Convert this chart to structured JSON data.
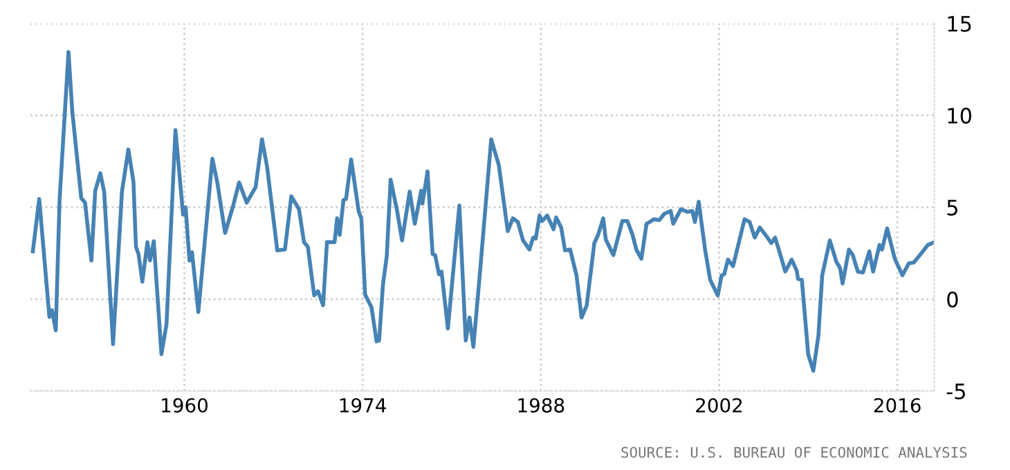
{
  "chart_data": {
    "type": "line",
    "x": [
      1948.1,
      1948.6,
      1949.4,
      1949.6,
      1949.9,
      1950.2,
      1950.9,
      1951.2,
      1951.9,
      1952.2,
      1952.7,
      1953.0,
      1953.4,
      1953.7,
      1954.4,
      1955.1,
      1955.6,
      1956.0,
      1956.2,
      1956.4,
      1956.7,
      1957.1,
      1957.3,
      1957.6,
      1958.2,
      1958.6,
      1959.3,
      1959.9,
      1960.1,
      1960.4,
      1960.6,
      1961.1,
      1961.4,
      1962.2,
      1962.6,
      1963.2,
      1963.8,
      1964.3,
      1964.9,
      1965.6,
      1966.1,
      1966.5,
      1967.3,
      1967.9,
      1968.4,
      1969.0,
      1969.4,
      1969.7,
      1970.2,
      1970.5,
      1970.9,
      1971.2,
      1971.8,
      1972.0,
      1972.2,
      1972.5,
      1972.7,
      1973.1,
      1973.7,
      1973.9,
      1974.2,
      1974.7,
      1975.1,
      1975.3,
      1975.6,
      1975.9,
      1976.2,
      1976.7,
      1977.1,
      1977.7,
      1978.1,
      1978.6,
      1978.7,
      1979.1,
      1979.5,
      1979.7,
      1980.0,
      1980.2,
      1980.7,
      1981.6,
      1982.1,
      1982.4,
      1982.7,
      1983.2,
      1984.1,
      1984.7,
      1985.4,
      1985.8,
      1986.2,
      1986.6,
      1987.1,
      1987.4,
      1987.6,
      1987.9,
      1988.1,
      1988.5,
      1989.0,
      1989.2,
      1989.6,
      1989.9,
      1990.3,
      1990.8,
      1991.2,
      1991.6,
      1992.2,
      1992.5,
      1992.9,
      1993.1,
      1993.7,
      1994.4,
      1994.8,
      1995.2,
      1995.5,
      1995.9,
      1996.3,
      1996.9,
      1997.3,
      1997.7,
      1998.2,
      1998.4,
      1999.0,
      1999.5,
      1999.9,
      2000.1,
      2000.4,
      2000.9,
      2001.3,
      2001.9,
      2002.2,
      2002.4,
      2002.7,
      2003.1,
      2004.0,
      2004.4,
      2004.8,
      2005.2,
      2005.7,
      2006.1,
      2006.4,
      2006.8,
      2007.2,
      2007.7,
      2008.1,
      2008.2,
      2008.5,
      2009.0,
      2009.4,
      2009.8,
      2010.1,
      2010.7,
      2011.2,
      2011.5,
      2011.7,
      2012.2,
      2012.5,
      2012.9,
      2013.3,
      2013.8,
      2014.1,
      2014.6,
      2014.8,
      2015.2,
      2015.8,
      2016.4,
      2016.9,
      2017.3,
      2018.0,
      2018.4,
      2018.9
    ],
    "series": [
      {
        "color": "#4682b4",
        "values": [
          2.6,
          5.45,
          -0.97,
          -0.6,
          -1.7,
          5.4,
          13.45,
          10.2,
          5.5,
          5.25,
          2.1,
          5.9,
          6.85,
          5.85,
          -2.45,
          5.85,
          8.15,
          6.4,
          2.85,
          2.45,
          0.95,
          3.1,
          2.1,
          3.15,
          -3.0,
          -1.35,
          9.2,
          4.6,
          5.0,
          2.1,
          2.55,
          -0.7,
          1.6,
          7.65,
          6.3,
          3.6,
          5.0,
          6.35,
          5.25,
          6.1,
          8.7,
          7.2,
          2.65,
          2.7,
          5.6,
          4.9,
          3.1,
          2.85,
          0.2,
          0.43,
          -0.33,
          3.1,
          3.1,
          4.4,
          3.5,
          5.4,
          5.45,
          7.6,
          4.75,
          4.4,
          0.25,
          -0.45,
          -2.3,
          -2.25,
          0.8,
          2.35,
          6.5,
          4.85,
          3.2,
          5.85,
          4.1,
          5.9,
          5.2,
          6.95,
          2.45,
          2.4,
          1.35,
          1.5,
          -1.6,
          5.1,
          -2.25,
          -1.0,
          -2.6,
          1.3,
          8.7,
          7.3,
          3.7,
          4.4,
          4.2,
          3.2,
          2.7,
          3.35,
          3.3,
          4.55,
          4.25,
          4.55,
          3.8,
          4.45,
          3.9,
          2.65,
          2.7,
          1.3,
          -1.0,
          -0.35,
          3.05,
          3.5,
          4.4,
          3.25,
          2.4,
          4.25,
          4.25,
          3.5,
          2.7,
          2.2,
          4.1,
          4.35,
          4.3,
          4.65,
          4.8,
          4.1,
          4.9,
          4.75,
          4.8,
          4.2,
          5.3,
          2.7,
          1.05,
          0.2,
          1.3,
          1.35,
          2.15,
          1.8,
          4.35,
          4.2,
          3.35,
          3.9,
          3.45,
          3.05,
          3.35,
          2.45,
          1.5,
          2.15,
          1.55,
          1.1,
          1.05,
          -3.0,
          -3.9,
          -2.0,
          1.3,
          3.2,
          2.05,
          1.7,
          0.85,
          2.7,
          2.4,
          1.5,
          1.45,
          2.6,
          1.5,
          2.95,
          2.7,
          3.85,
          2.2,
          1.3,
          1.95,
          2.0,
          2.6,
          2.95,
          3.1
        ]
      }
    ],
    "xlim": [
      1947.9,
      2018.9
    ],
    "xticks": [
      1960,
      1974,
      1988,
      2002,
      2016
    ],
    "ylim": [
      -5,
      15
    ],
    "yticks": [
      -5,
      0,
      5,
      10,
      15
    ],
    "grid": true,
    "marker": "none",
    "line_style": "solid",
    "annotations": [
      "SOURCE: U.S. BUREAU OF ECONOMIC ANALYSIS"
    ]
  }
}
